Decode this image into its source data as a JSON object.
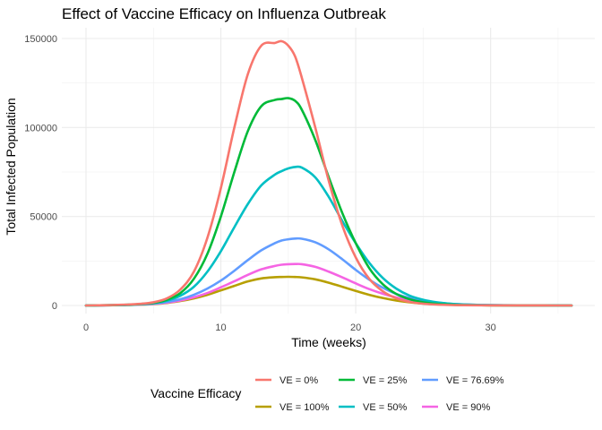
{
  "chart_data": {
    "type": "line",
    "title": "Effect of Vaccine Efficacy on Influenza Outbreak",
    "xlabel": "Time (weeks)",
    "ylabel": "Total Infected Population",
    "xlim": [
      0,
      36
    ],
    "ylim": [
      0,
      150000
    ],
    "x_ticks": [
      0,
      10,
      20,
      30
    ],
    "x_tick_labels": [
      "0",
      "10",
      "20",
      "30"
    ],
    "y_ticks": [
      0,
      50000,
      100000,
      150000
    ],
    "y_tick_labels": [
      "0",
      "50000",
      "100000",
      "150000"
    ],
    "grid": true,
    "legend": {
      "title": "Vaccine Efficacy",
      "position": "bottom",
      "rows": 2
    },
    "x": [
      0,
      1,
      2,
      3,
      4,
      5,
      6,
      7,
      8,
      9,
      10,
      11,
      12,
      13,
      14,
      14.5,
      15,
      15.5,
      16,
      17,
      18,
      19,
      20,
      21,
      22,
      23,
      24,
      25,
      26,
      27,
      28,
      30,
      32,
      34,
      36
    ],
    "series": [
      {
        "name": "VE = 0%",
        "color": "#F8766D",
        "values": [
          0,
          100,
          250,
          500,
          900,
          1800,
          4000,
          9000,
          19000,
          38000,
          66000,
          100000,
          130000,
          146000,
          147500,
          148500,
          146000,
          140000,
          128000,
          100000,
          70000,
          45000,
          27000,
          15000,
          8000,
          4000,
          2000,
          1000,
          500,
          250,
          150,
          50,
          20,
          10,
          0
        ]
      },
      {
        "name": "VE = 25%",
        "color": "#00BA38",
        "values": [
          0,
          80,
          200,
          400,
          800,
          1500,
          3200,
          7000,
          15000,
          29000,
          50000,
          75000,
          98000,
          112000,
          115500,
          116000,
          116500,
          115000,
          110000,
          93000,
          72000,
          52000,
          35000,
          21000,
          12000,
          6500,
          3500,
          1800,
          900,
          450,
          250,
          80,
          30,
          10,
          0
        ]
      },
      {
        "name": "VE = 76.69%",
        "color": "#619CFF",
        "values": [
          0,
          60,
          150,
          300,
          600,
          1100,
          2000,
          3500,
          6000,
          9500,
          14000,
          19500,
          25500,
          31000,
          35000,
          36500,
          37200,
          37600,
          37500,
          35500,
          31500,
          26000,
          20000,
          14500,
          10000,
          6500,
          4200,
          2600,
          1600,
          1000,
          600,
          200,
          80,
          30,
          0
        ]
      },
      {
        "name": "VE = 100%",
        "color": "#B79F00",
        "values": [
          0,
          50,
          120,
          250,
          450,
          800,
          1400,
          2500,
          4000,
          6000,
          8500,
          11000,
          13500,
          15200,
          15900,
          16000,
          16100,
          16000,
          15800,
          14700,
          12800,
          10500,
          8200,
          6000,
          4200,
          2800,
          1800,
          1100,
          650,
          400,
          250,
          90,
          35,
          12,
          0
        ]
      },
      {
        "name": "VE = 50%",
        "color": "#00BFC4",
        "values": [
          0,
          70,
          170,
          350,
          700,
          1300,
          2700,
          5500,
          10500,
          19000,
          30500,
          44000,
          57000,
          67500,
          73500,
          75500,
          77000,
          77800,
          77500,
          72000,
          61000,
          47500,
          35000,
          24000,
          15500,
          9500,
          5500,
          3200,
          1800,
          1000,
          550,
          180,
          60,
          20,
          0
        ]
      },
      {
        "name": "VE = 90%",
        "color": "#F564E3",
        "values": [
          0,
          55,
          130,
          270,
          500,
          900,
          1600,
          2800,
          4600,
          7000,
          10200,
          13600,
          17200,
          20300,
          22200,
          22900,
          23200,
          23300,
          23200,
          21700,
          19000,
          15800,
          12400,
          9200,
          6600,
          4500,
          3000,
          1900,
          1200,
          750,
          450,
          160,
          60,
          20,
          0
        ]
      }
    ]
  }
}
